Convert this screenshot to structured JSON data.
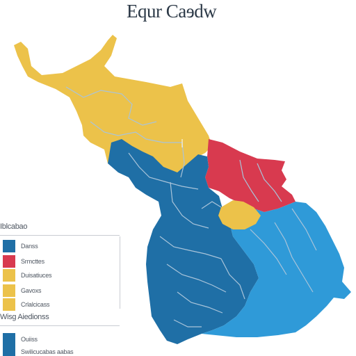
{
  "title": "Equr Caɘdw",
  "colors": {
    "yellow": "#ecc24a",
    "red": "#d83a4f",
    "dark_blue": "#1f6fa6",
    "light_blue": "#2f9ad8",
    "border": "#a9c4da"
  },
  "regions": [
    {
      "name": "north-west",
      "color": "yellow"
    },
    {
      "name": "north-east",
      "color": "red"
    },
    {
      "name": "central-west",
      "color": "dark_blue"
    },
    {
      "name": "east",
      "color": "light_blue"
    },
    {
      "name": "center-small",
      "color": "yellow"
    }
  ],
  "legend": {
    "header": "Iblcabao",
    "items": [
      {
        "label": "Danss",
        "color": "dark_blue"
      },
      {
        "label": "Srmcttes",
        "color": "red"
      },
      {
        "label": "Duisatiuces",
        "color": "yellow"
      },
      {
        "label": "Gavoxs",
        "color": "yellow"
      },
      {
        "label": "Crlalcicass",
        "color": "yellow"
      }
    ],
    "footer": "Wisg Aiedionss",
    "footer_items": [
      {
        "label": "Ouiiss",
        "color": "dark_blue"
      },
      {
        "label": "Swilicucabas aabas",
        "color": "dark_blue"
      }
    ]
  }
}
